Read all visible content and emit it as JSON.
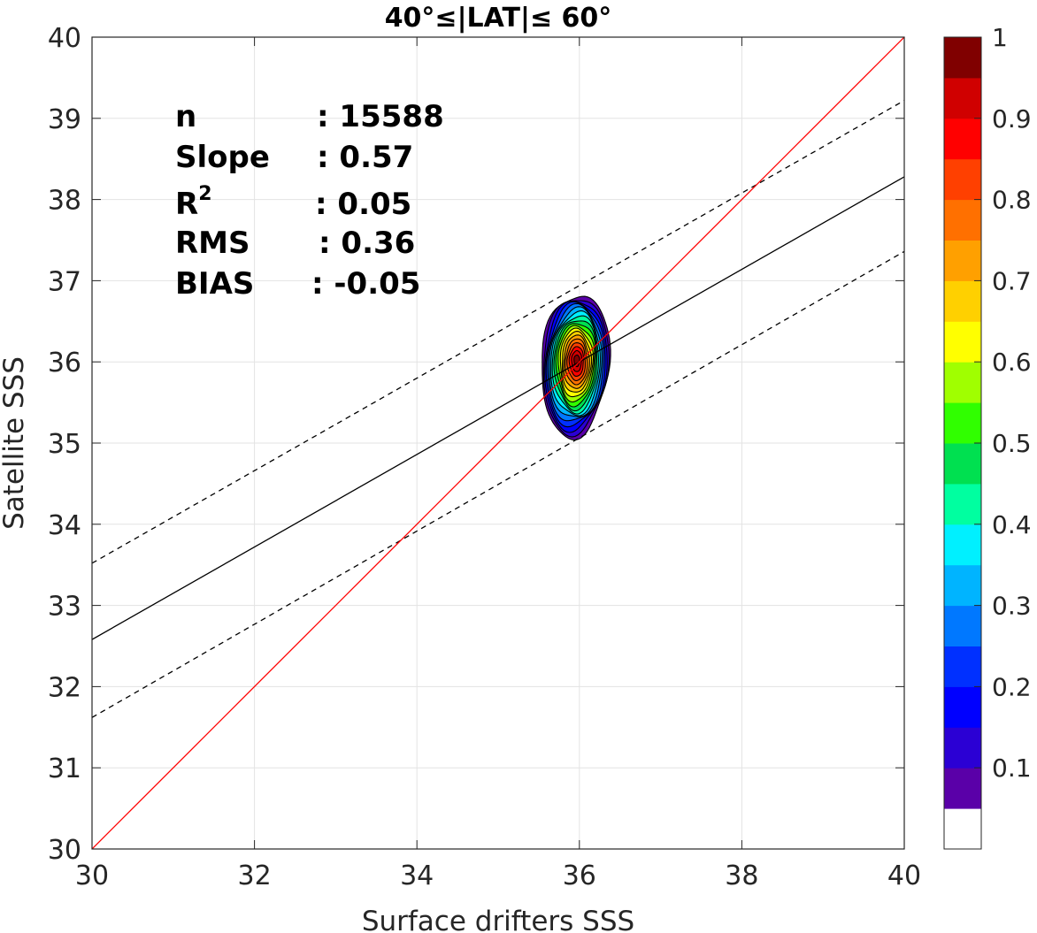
{
  "chart_data": {
    "type": "contour",
    "title": "40°≤|LAT|≤ 60°",
    "xlabel": "Surface drifters SSS",
    "ylabel": "Satellite SSS",
    "xlim": [
      30,
      40
    ],
    "ylim": [
      30,
      40
    ],
    "xticks": [
      "30",
      "32",
      "34",
      "36",
      "38",
      "40"
    ],
    "yticks": [
      "30",
      "31",
      "32",
      "33",
      "34",
      "35",
      "36",
      "37",
      "38",
      "39",
      "40"
    ],
    "grid": true,
    "stats": [
      {
        "label": "n",
        "value": ": 15588"
      },
      {
        "label": "Slope",
        "value": ": 0.57"
      },
      {
        "label": "R",
        "sup": "2",
        "value": ": 0.05"
      },
      {
        "label": "RMS",
        "value": ": 0.36"
      },
      {
        "label": "BIAS",
        "value": ": -0.05"
      }
    ],
    "lines": {
      "identity": {
        "x": [
          30,
          40
        ],
        "y": [
          30,
          40
        ],
        "color": "#ff0000"
      },
      "fit": {
        "x": [
          30,
          40
        ],
        "y": [
          32.58,
          38.28
        ],
        "color": "#000000"
      },
      "fit_upper": {
        "x": [
          30,
          40
        ],
        "y": [
          33.52,
          39.22
        ],
        "color": "#000000",
        "dash": true
      },
      "fit_lower": {
        "x": [
          30,
          40
        ],
        "y": [
          31.62,
          37.36
        ],
        "color": "#000000",
        "dash": true
      }
    },
    "density": {
      "center": [
        35.95,
        36.0
      ],
      "outer_half_width_x": 0.43,
      "outer_y_range": [
        35.05,
        36.85
      ],
      "levels": [
        0.05,
        0.1,
        0.15,
        0.2,
        0.25,
        0.3,
        0.35,
        0.4,
        0.45,
        0.5,
        0.55,
        0.6,
        0.65,
        0.7,
        0.75,
        0.8,
        0.85,
        0.9,
        0.95
      ]
    },
    "colorbar": {
      "ticks": [
        "0.1",
        "0.2",
        "0.3",
        "0.4",
        "0.5",
        "0.6",
        "0.7",
        "0.8",
        "0.9",
        "1"
      ],
      "tick_values": [
        0.1,
        0.2,
        0.3,
        0.4,
        0.5,
        0.6,
        0.7,
        0.8,
        0.9,
        1.0
      ],
      "colors": [
        "#ffffff",
        "#5a00a8",
        "#2b00d4",
        "#0000ff",
        "#0030ff",
        "#0078ff",
        "#00b4ff",
        "#00f0ff",
        "#00ffa0",
        "#00e050",
        "#30ff00",
        "#a0ff00",
        "#ffff00",
        "#ffd000",
        "#ffa000",
        "#ff7000",
        "#ff4000",
        "#ff0000",
        "#d00000",
        "#800000"
      ]
    }
  }
}
